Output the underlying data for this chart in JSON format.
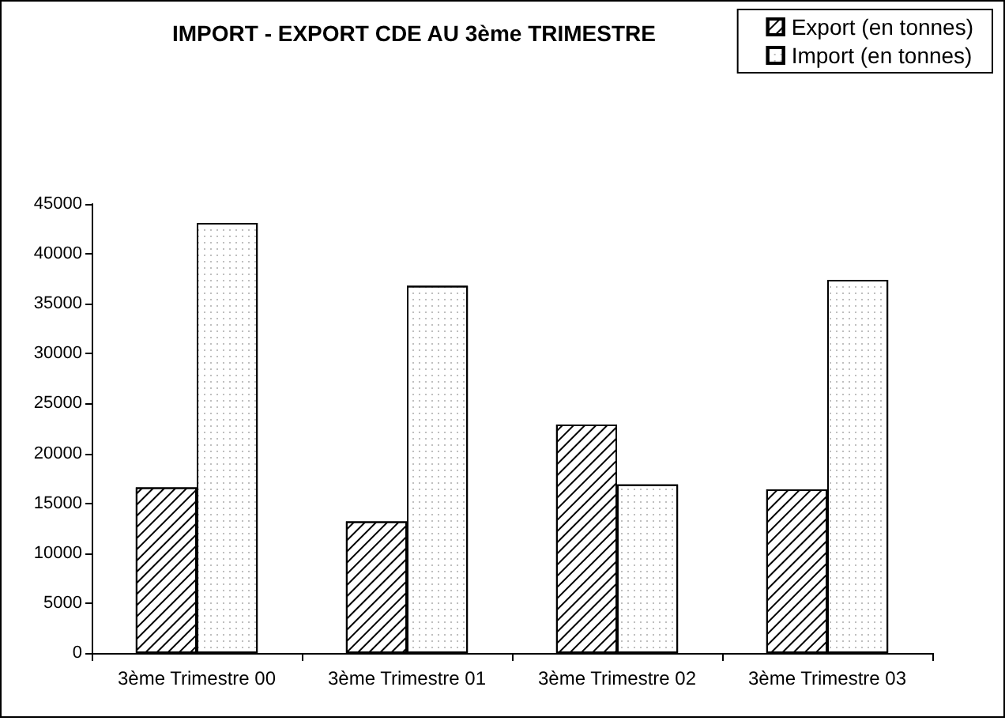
{
  "chart_data": {
    "type": "bar",
    "title": "IMPORT - EXPORT CDE AU 3ème TRIMESTRE",
    "categories": [
      "3ème Trimestre 00",
      "3ème Trimestre 01",
      "3ème Trimestre 02",
      "3ème Trimestre 03"
    ],
    "series": [
      {
        "name": "Export (en tonnes)",
        "color": "#ffffff",
        "values": [
          16600,
          13200,
          22900,
          16400
        ]
      },
      {
        "name": "Import (en tonnes)",
        "color": "#ffffff",
        "values": [
          43100,
          36800,
          16900,
          37400
        ]
      }
    ],
    "ylim": [
      0,
      45000
    ],
    "yticks": [
      0,
      5000,
      10000,
      15000,
      20000,
      25000,
      30000,
      35000,
      40000,
      45000
    ],
    "grid": false,
    "legend": "top right"
  }
}
